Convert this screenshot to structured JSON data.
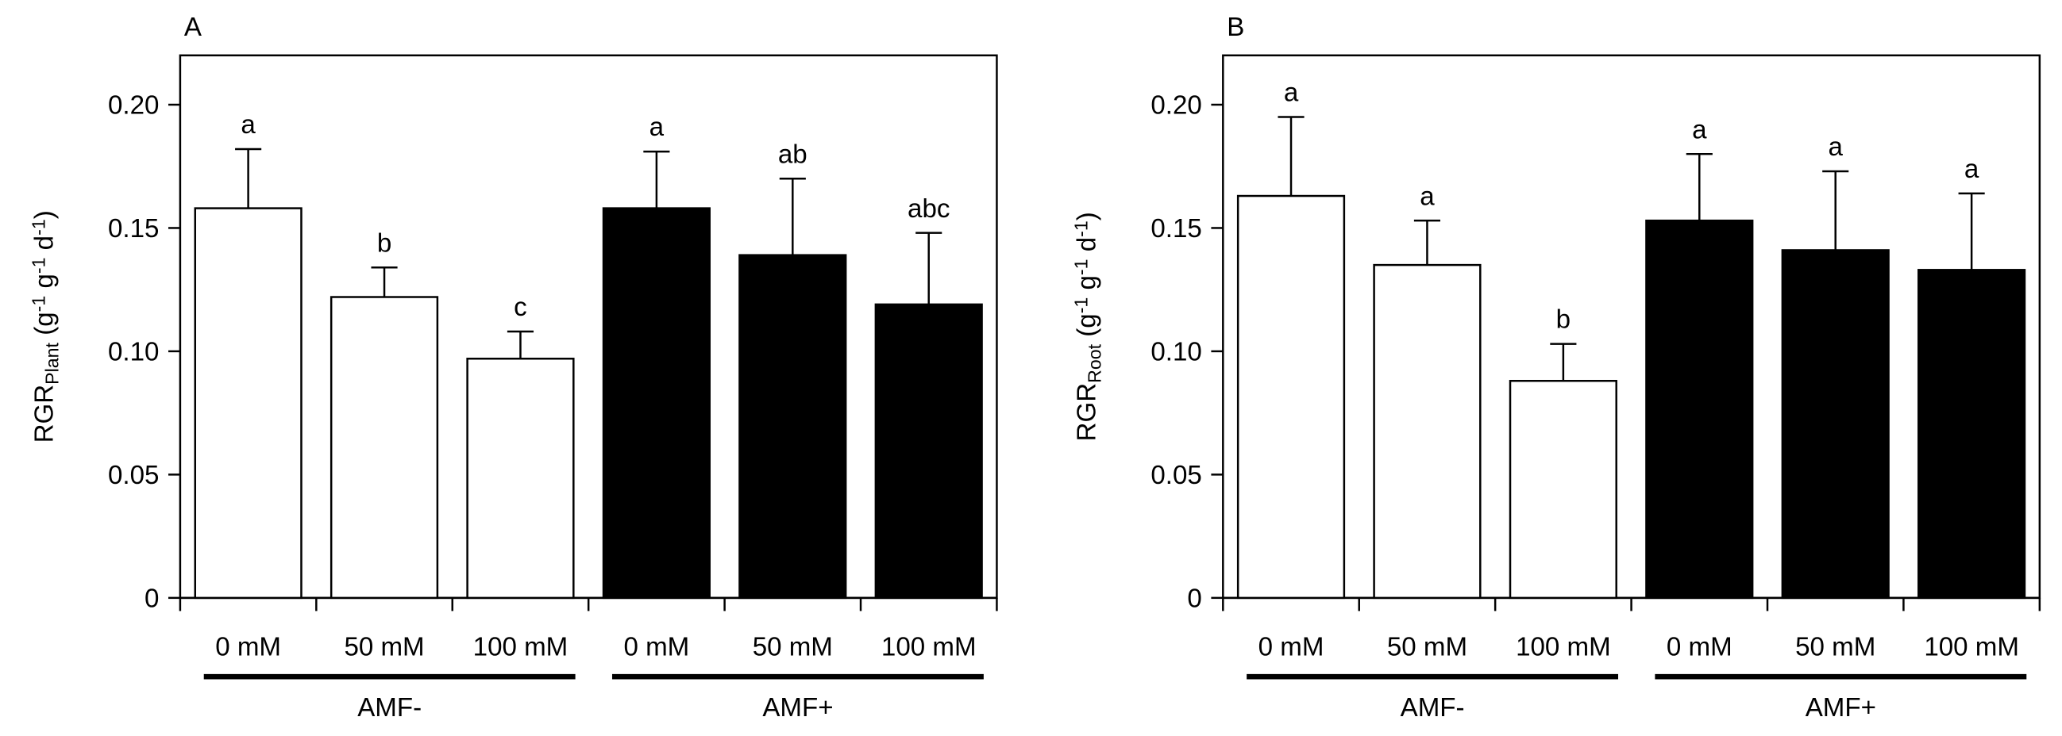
{
  "chart_data": [
    {
      "type": "bar",
      "title": "A",
      "ylabel": [
        "RGR",
        "Plant",
        " (g",
        "-1",
        " g",
        "-1",
        " d",
        "-1",
        ")"
      ],
      "categories": [
        "0 mM",
        "50 mM",
        "100 mM",
        "0 mM",
        "50 mM",
        "100 mM"
      ],
      "groups": [
        "AMF-",
        "AMF+"
      ],
      "values": [
        0.158,
        0.122,
        0.097,
        0.158,
        0.139,
        0.119
      ],
      "errors": [
        0.024,
        0.012,
        0.011,
        0.023,
        0.031,
        0.029
      ],
      "bar_labels": [
        "a",
        "b",
        "c",
        "a",
        "ab",
        "abc"
      ],
      "colors": [
        "#ffffff",
        "#ffffff",
        "#ffffff",
        "#000000",
        "#000000",
        "#000000"
      ],
      "ylim": [
        0,
        0.22
      ],
      "yticks": [
        0,
        0.05,
        {
          "value": 0.1,
          "label": "0.10"
        },
        0.15,
        {
          "value": 0.2,
          "label": "0.20"
        }
      ]
    },
    {
      "type": "bar",
      "title": "B",
      "ylabel": [
        "RGR",
        "Root",
        " (g",
        "-1",
        " g",
        "-1",
        " d",
        "-1",
        ")"
      ],
      "categories": [
        "0 mM",
        "50 mM",
        "100 mM",
        "0 mM",
        "50 mM",
        "100 mM"
      ],
      "groups": [
        "AMF-",
        "AMF+"
      ],
      "values": [
        0.163,
        0.135,
        0.088,
        0.153,
        0.141,
        0.133
      ],
      "errors": [
        0.032,
        0.018,
        0.015,
        0.027,
        0.032,
        0.031
      ],
      "bar_labels": [
        "a",
        "a",
        "b",
        "a",
        "a",
        "a"
      ],
      "colors": [
        "#ffffff",
        "#ffffff",
        "#ffffff",
        "#000000",
        "#000000",
        "#000000"
      ],
      "ylim": [
        0,
        0.22
      ],
      "yticks": [
        0,
        0.05,
        {
          "value": 0.1,
          "label": "0.10"
        },
        0.15,
        {
          "value": 0.2,
          "label": "0.20"
        }
      ]
    }
  ]
}
